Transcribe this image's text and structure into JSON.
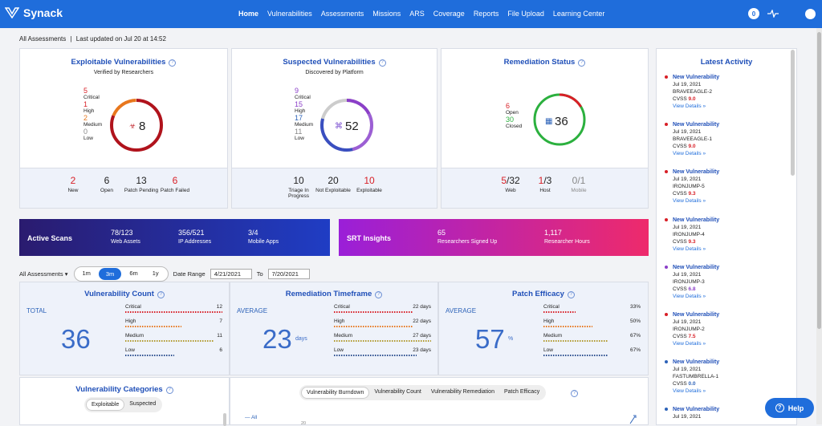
{
  "nav": {
    "brand": "Synack",
    "links": [
      "Home",
      "Vulnerabilities",
      "Assessments",
      "Missions",
      "ARS",
      "Coverage",
      "Reports",
      "File Upload",
      "Learning Center"
    ],
    "badge_count": "0"
  },
  "subheader": {
    "scope": "All Assessments",
    "separator": "|",
    "updated": "Last updated on Jul 20 at 14:52"
  },
  "exploitable": {
    "title": "Exploitable Vulnerabilities",
    "subtitle": "Verified by Researchers",
    "severities": [
      {
        "count": "5",
        "label": "Critical"
      },
      {
        "count": "1",
        "label": "High"
      },
      {
        "count": "2",
        "label": "Medium"
      },
      {
        "count": "0",
        "label": "Low"
      }
    ],
    "total": "8",
    "stats": [
      {
        "value": "2",
        "label": "New"
      },
      {
        "value": "6",
        "label": "Open"
      },
      {
        "value": "13",
        "label": "Patch Pending"
      },
      {
        "value": "6",
        "label": "Patch Failed"
      }
    ]
  },
  "suspected": {
    "title": "Suspected Vulnerabilities",
    "subtitle": "Discovered by Platform",
    "severities": [
      {
        "count": "9",
        "label": "Critical"
      },
      {
        "count": "15",
        "label": "High"
      },
      {
        "count": "17",
        "label": "Medium"
      },
      {
        "count": "11",
        "label": "Low"
      }
    ],
    "total": "52",
    "stats": [
      {
        "value": "10",
        "label": "Triage In Progress"
      },
      {
        "value": "20",
        "label": "Not Exploitable"
      },
      {
        "value": "10",
        "label": "Exploitable"
      }
    ]
  },
  "remediation": {
    "title": "Remediation Status",
    "items": [
      {
        "count": "6",
        "label": "Open"
      },
      {
        "count": "30",
        "label": "Closed"
      }
    ],
    "total": "36",
    "stats": [
      {
        "value": "5",
        "total": "/32",
        "label": "Web"
      },
      {
        "value": "1",
        "total": "/3",
        "label": "Host"
      },
      {
        "value": "0",
        "total": "/1",
        "label": "Mobile"
      }
    ]
  },
  "active_scans": {
    "title": "Active Scans",
    "items": [
      {
        "value": "78/123",
        "label": "Web Assets"
      },
      {
        "value": "356/521",
        "label": "IP Addresses"
      },
      {
        "value": "3/4",
        "label": "Mobile Apps"
      }
    ]
  },
  "srt": {
    "title": "SRT Insights",
    "items": [
      {
        "value": "65",
        "label": "Researchers Signed Up"
      },
      {
        "value": "1,117",
        "label": "Researcher Hours"
      }
    ]
  },
  "filters": {
    "scope": "All Assessments",
    "ranges": [
      "1m",
      "3m",
      "6m",
      "1y"
    ],
    "active_range": "3m",
    "date_range_label": "Date Range",
    "from": "4/21/2021",
    "to_label": "To",
    "to": "7/20/2021"
  },
  "vuln_count": {
    "title": "Vulnerability Count",
    "left_label": "TOTAL",
    "value": "36",
    "rows": [
      {
        "label": "Critical",
        "value": "12",
        "fill": 1.0
      },
      {
        "label": "High",
        "value": "7",
        "fill": 0.58
      },
      {
        "label": "Medium",
        "value": "11",
        "fill": 0.92
      },
      {
        "label": "Low",
        "value": "6",
        "fill": 0.5
      }
    ]
  },
  "rem_timeframe": {
    "title": "Remediation Timeframe",
    "left_label": "AVERAGE",
    "value": "23",
    "unit": "days",
    "rows": [
      {
        "label": "Critical",
        "value": "22 days",
        "fill": 0.81
      },
      {
        "label": "High",
        "value": "22 days",
        "fill": 0.81
      },
      {
        "label": "Medium",
        "value": "27 days",
        "fill": 1.0
      },
      {
        "label": "Low",
        "value": "23 days",
        "fill": 0.85
      }
    ]
  },
  "patch_efficacy": {
    "title": "Patch Efficacy",
    "left_label": "AVERAGE",
    "value": "57",
    "unit": "%",
    "rows": [
      {
        "label": "Critical",
        "value": "33%",
        "fill": 0.33
      },
      {
        "label": "High",
        "value": "50%",
        "fill": 0.5
      },
      {
        "label": "Medium",
        "value": "67%",
        "fill": 0.67
      },
      {
        "label": "Low",
        "value": "67%",
        "fill": 0.67
      }
    ]
  },
  "vuln_categories": {
    "title": "Vulnerability Categories",
    "tabs": [
      "Exploitable",
      "Suspected"
    ]
  },
  "chart_tabs": {
    "tabs": [
      "Vulnerability Burndown",
      "Vulnerability Count",
      "Vulnerability Remediation",
      "Patch Efficacy"
    ],
    "legend": "All",
    "tick": "20"
  },
  "activity": {
    "title": "Latest Activity",
    "items": [
      {
        "title": "New Vulnerability",
        "date": "Jul 19, 2021",
        "name": "BRAVEEAGLE-2",
        "cvss_label": "CVSS",
        "cvss": "9.0",
        "link": "View Details »"
      },
      {
        "title": "New Vulnerability",
        "date": "Jul 19, 2021",
        "name": "BRAVEEAGLE-1",
        "cvss_label": "CVSS",
        "cvss": "9.0",
        "link": "View Details »"
      },
      {
        "title": "New Vulnerability",
        "date": "Jul 19, 2021",
        "name": "IRONJUMP-5",
        "cvss_label": "CVSS",
        "cvss": "9.3",
        "link": "View Details »"
      },
      {
        "title": "New Vulnerability",
        "date": "Jul 19, 2021",
        "name": "IRONJUMP-4",
        "cvss_label": "CVSS",
        "cvss": "9.3",
        "link": "View Details »"
      },
      {
        "title": "New Vulnerability",
        "date": "Jul 19, 2021",
        "name": "IRONJUMP-3",
        "cvss_label": "CVSS",
        "cvss": "6.8",
        "link": "View Details »"
      },
      {
        "title": "New Vulnerability",
        "date": "Jul 19, 2021",
        "name": "IRONJUMP-2",
        "cvss_label": "CVSS",
        "cvss": "7.5",
        "link": "View Details »"
      },
      {
        "title": "New Vulnerability",
        "date": "Jul 19, 2021",
        "name": "FASTUMBRELLA-1",
        "cvss_label": "CVSS",
        "cvss": "0.0",
        "link": "View Details »"
      },
      {
        "title": "New Vulnerability",
        "date": "Jul 19, 2021",
        "name": "",
        "cvss_label": "",
        "cvss": "",
        "link": ""
      }
    ]
  },
  "help": {
    "label": "Help"
  },
  "colors": {
    "critical": "#d81f26",
    "high": "#e8771d",
    "medium": "#b19a2d",
    "low": "#2c4f8f",
    "brand": "#1f6ddb"
  }
}
